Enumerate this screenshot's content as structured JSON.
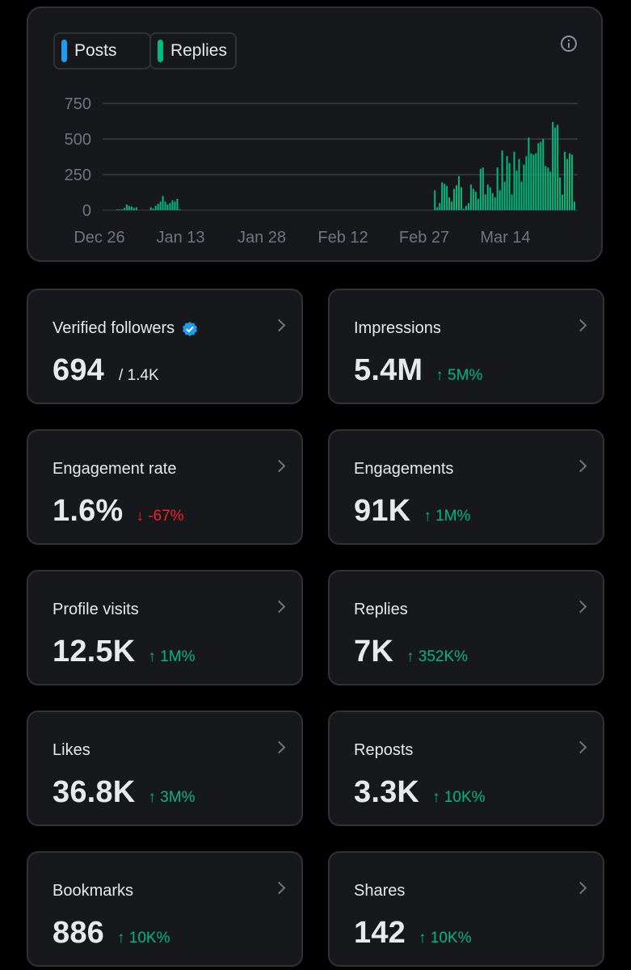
{
  "legend": {
    "posts_label": "Posts",
    "replies_label": "Replies",
    "posts_color": "#1d9bf0",
    "replies_color": "#00ba7c"
  },
  "chart_data": {
    "type": "bar",
    "x_ticks": [
      "Dec 26",
      "Jan 13",
      "Jan 28",
      "Feb 12",
      "Feb 27",
      "Mar 14"
    ],
    "y_ticks": [
      "750",
      "500",
      "250",
      "0"
    ],
    "ylim": [
      0,
      750
    ],
    "grid": true,
    "series": [
      {
        "name": "Replies",
        "color": "#00ba7c",
        "values": [
          5,
          5,
          5,
          15,
          40,
          30,
          25,
          15,
          20,
          0,
          0,
          0,
          0,
          0,
          20,
          10,
          30,
          45,
          60,
          100,
          60,
          40,
          50,
          70,
          60,
          80,
          5,
          0,
          0,
          0,
          0,
          0,
          0,
          0,
          0,
          0,
          0,
          0,
          0,
          0,
          0,
          0,
          0,
          0,
          0,
          0,
          0,
          0,
          0,
          0,
          0,
          0,
          0,
          0,
          0,
          0,
          0,
          0,
          0,
          0,
          0,
          0,
          0,
          0,
          0,
          0,
          0,
          0,
          0,
          0,
          0,
          0,
          0,
          0,
          0,
          0,
          0,
          0,
          0,
          0,
          0,
          0,
          0,
          0,
          0,
          0,
          0,
          0,
          0,
          0,
          0,
          0,
          0,
          0,
          0,
          0,
          0,
          0,
          0,
          0,
          0,
          0,
          0,
          0,
          0,
          0,
          0,
          0,
          0,
          0,
          0,
          0,
          0,
          0,
          0,
          0,
          0,
          0,
          0,
          0,
          0,
          0,
          0,
          0,
          0,
          0,
          0,
          0,
          0,
          0,
          0,
          0,
          140,
          20,
          50,
          195,
          185,
          170,
          90,
          60,
          150,
          175,
          240,
          160,
          10,
          30,
          50,
          180,
          150,
          130,
          80,
          290,
          300,
          110,
          180,
          160,
          120,
          90,
          300,
          140,
          420,
          200,
          380,
          330,
          110,
          410,
          280,
          360,
          200,
          320,
          380,
          510,
          400,
          390,
          400,
          470,
          480,
          500,
          310,
          300,
          270,
          620,
          580,
          600,
          230,
          110,
          410,
          360,
          400,
          390,
          60
        ],
        "note": "daily bar heights estimated visually"
      }
    ]
  },
  "metrics": [
    {
      "label": "Verified followers",
      "value": "694",
      "sub": "/ 1.4K",
      "change": "",
      "direction": ""
    },
    {
      "label": "Impressions",
      "value": "5.4M",
      "sub": "",
      "change": "↑ 5M%",
      "direction": "up"
    },
    {
      "label": "Engagement rate",
      "value": "1.6%",
      "sub": "",
      "change": "↓ -67%",
      "direction": "down"
    },
    {
      "label": "Engagements",
      "value": "91K",
      "sub": "",
      "change": "↑ 1M%",
      "direction": "up"
    },
    {
      "label": "Profile visits",
      "value": "12.5K",
      "sub": "",
      "change": "↑ 1M%",
      "direction": "up"
    },
    {
      "label": "Replies",
      "value": "7K",
      "sub": "",
      "change": "↑ 352K%",
      "direction": "up"
    },
    {
      "label": "Likes",
      "value": "36.8K",
      "sub": "",
      "change": "↑ 3M%",
      "direction": "up"
    },
    {
      "label": "Reposts",
      "value": "3.3K",
      "sub": "",
      "change": "↑ 10K%",
      "direction": "up"
    },
    {
      "label": "Bookmarks",
      "value": "886",
      "sub": "",
      "change": "↑ 10K%",
      "direction": "up"
    },
    {
      "label": "Shares",
      "value": "142",
      "sub": "",
      "change": "↑ 10K%",
      "direction": "up"
    }
  ]
}
